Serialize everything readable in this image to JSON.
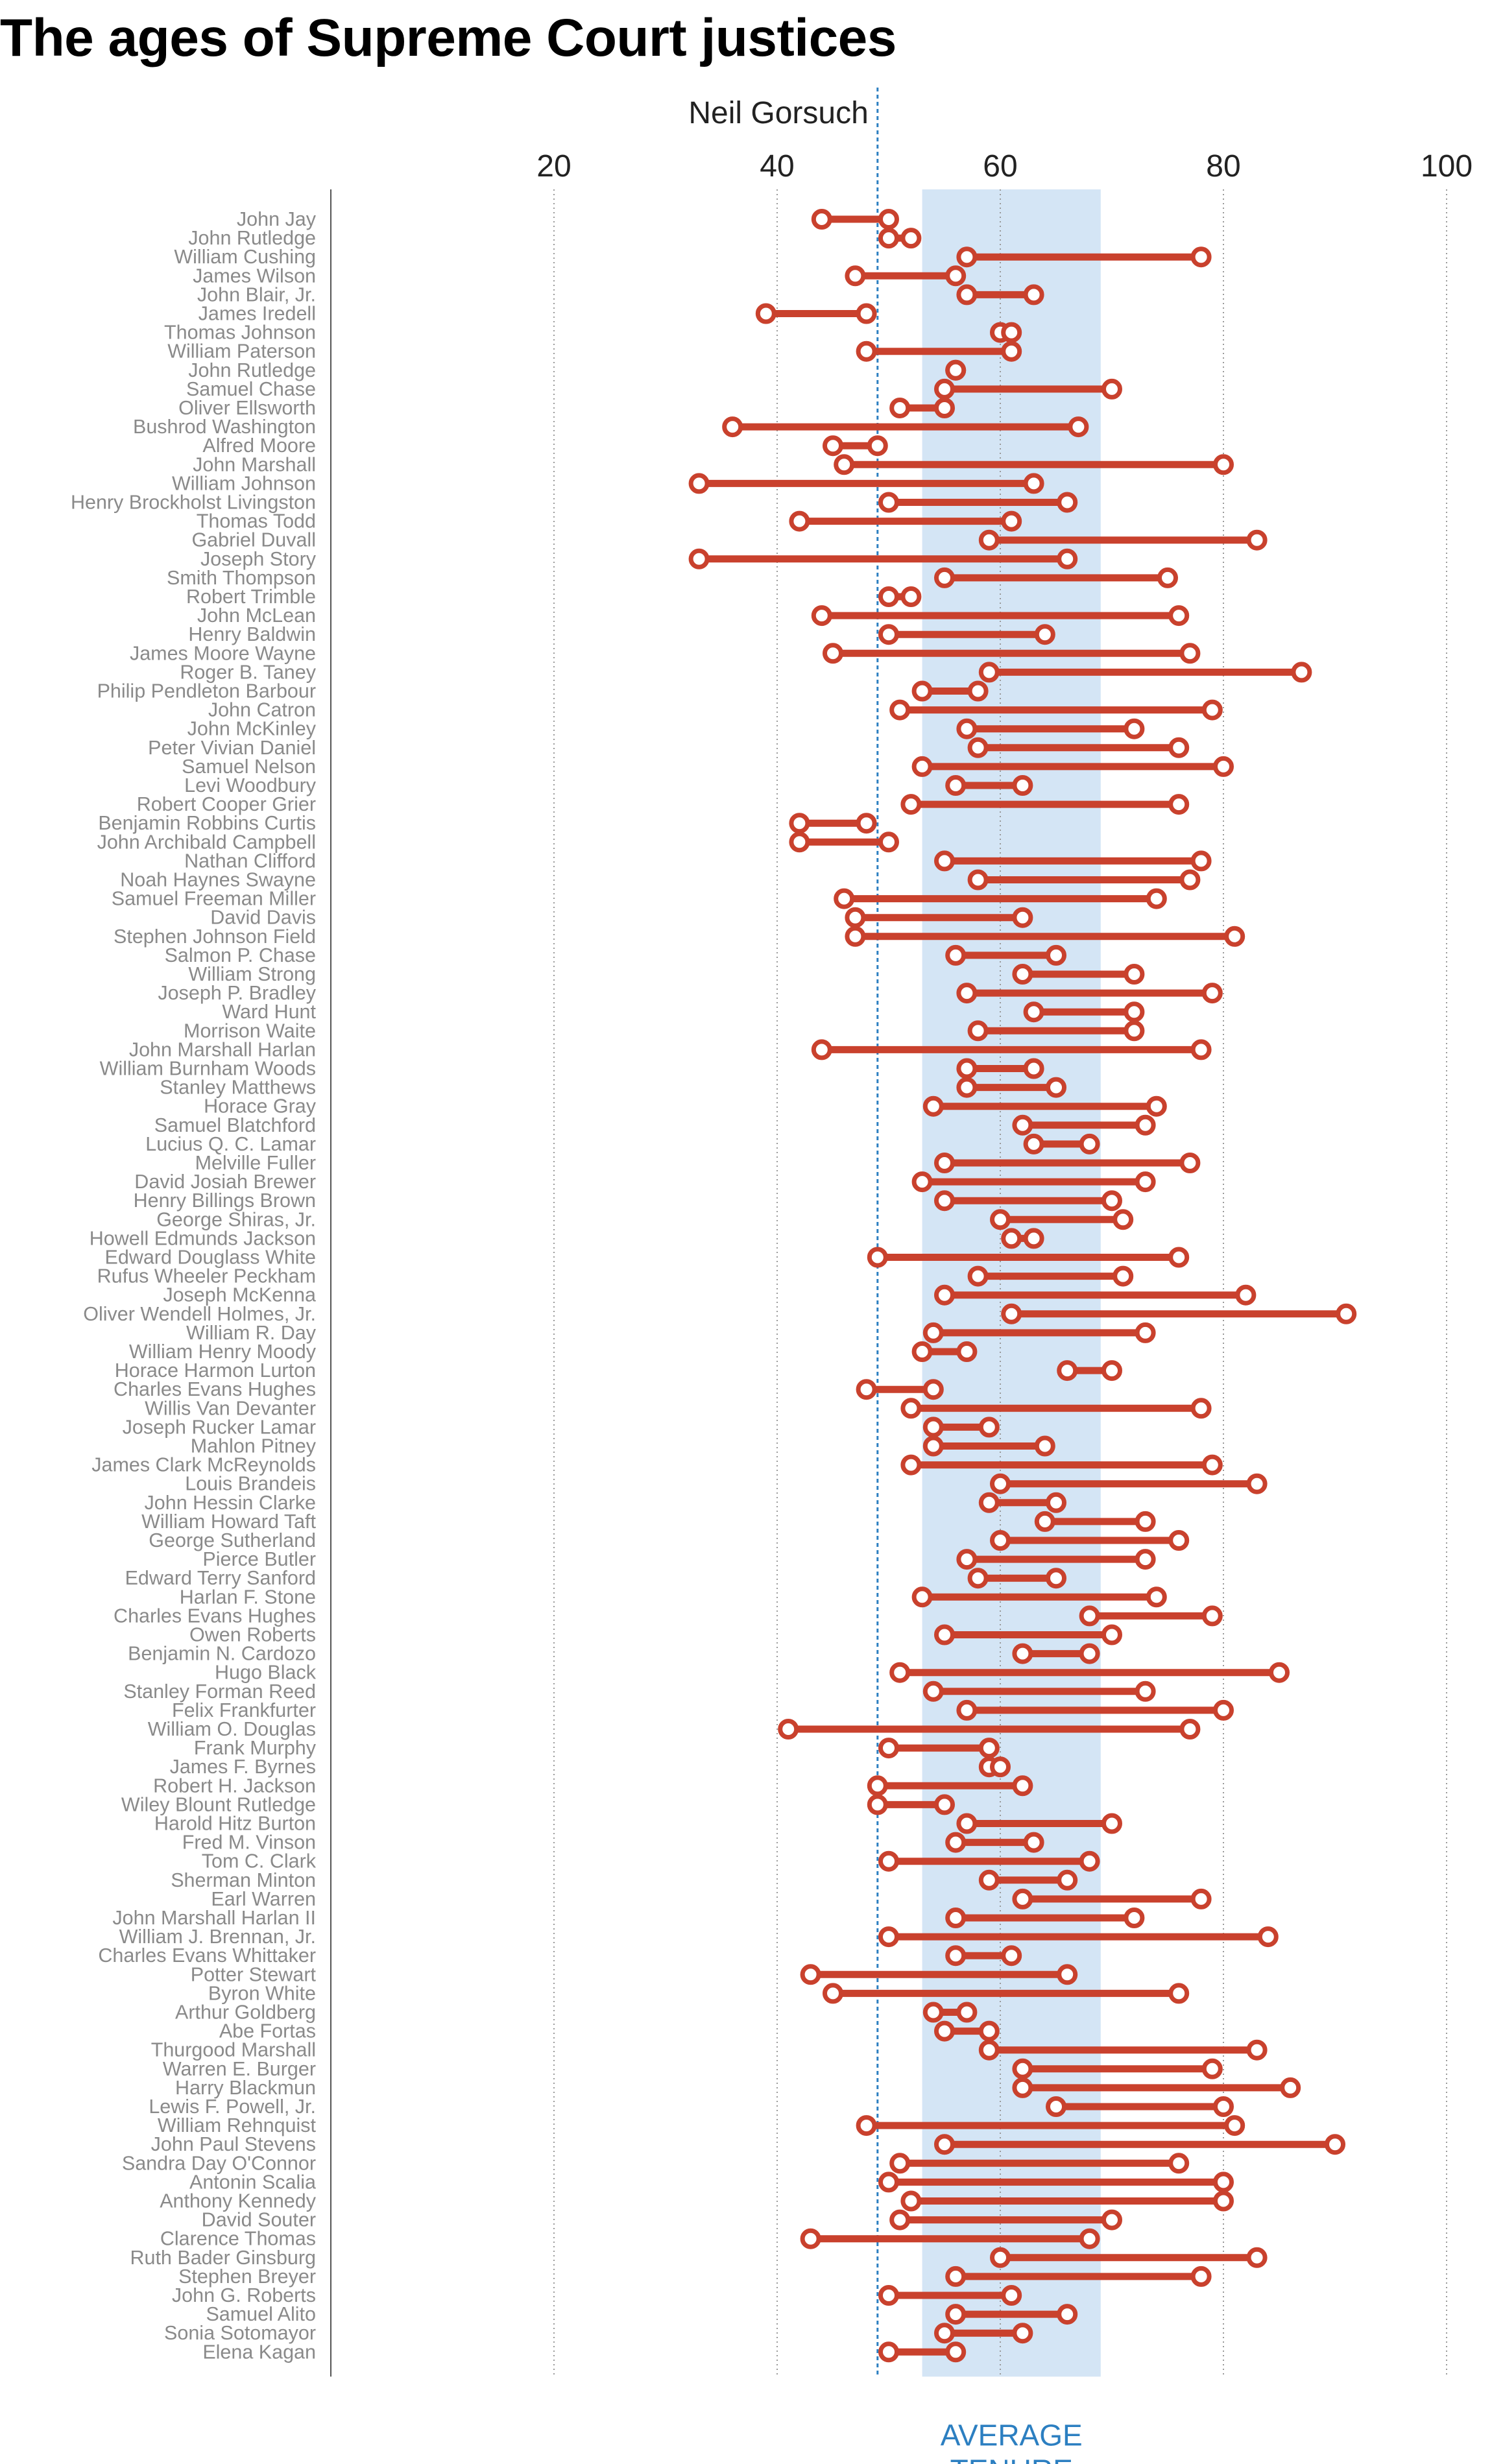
{
  "title": "The ages of Supreme Court justices",
  "colors": {
    "tenure_line": "#c9412d",
    "average_band": "#d4e5f5",
    "marker_line": "#2c7fc1",
    "grid": "#9a9a9a",
    "names": "#8a8a8a"
  },
  "chart_data": {
    "type": "dumbbell",
    "title": "The ages of Supreme Court justices",
    "xlabel": "",
    "ylabel": "",
    "x_ticks": [
      20,
      40,
      60,
      80,
      100
    ],
    "xlim": [
      0,
      100
    ],
    "grid": "vertical dotted",
    "reference_line": {
      "label": "Neil Gorsuch",
      "x": 49
    },
    "average_band": {
      "label": [
        "AVERAGE",
        "TENURE"
      ],
      "x_range": [
        53,
        69
      ]
    },
    "series": [
      {
        "name": "Age at start and end of tenure"
      }
    ],
    "justices": [
      {
        "name": "John Jay",
        "start": 44,
        "end": 50
      },
      {
        "name": "John Rutledge",
        "start": 50,
        "end": 52
      },
      {
        "name": "William Cushing",
        "start": 57,
        "end": 78
      },
      {
        "name": "James Wilson",
        "start": 47,
        "end": 56
      },
      {
        "name": "John Blair, Jr.",
        "start": 57,
        "end": 63
      },
      {
        "name": "James Iredell",
        "start": 39,
        "end": 48
      },
      {
        "name": "Thomas Johnson",
        "start": 60,
        "end": 61
      },
      {
        "name": "William Paterson",
        "start": 48,
        "end": 61
      },
      {
        "name": "John Rutledge",
        "start": 56,
        "end": 56
      },
      {
        "name": "Samuel Chase",
        "start": 55,
        "end": 70
      },
      {
        "name": "Oliver Ellsworth",
        "start": 51,
        "end": 55
      },
      {
        "name": "Bushrod Washington",
        "start": 36,
        "end": 67
      },
      {
        "name": "Alfred Moore",
        "start": 45,
        "end": 49
      },
      {
        "name": "John Marshall",
        "start": 46,
        "end": 80
      },
      {
        "name": "William Johnson",
        "start": 33,
        "end": 63
      },
      {
        "name": "Henry Brockholst Livingston",
        "start": 50,
        "end": 66
      },
      {
        "name": "Thomas Todd",
        "start": 42,
        "end": 61
      },
      {
        "name": "Gabriel Duvall",
        "start": 59,
        "end": 83
      },
      {
        "name": "Joseph Story",
        "start": 33,
        "end": 66
      },
      {
        "name": "Smith Thompson",
        "start": 55,
        "end": 75
      },
      {
        "name": "Robert Trimble",
        "start": 50,
        "end": 52
      },
      {
        "name": "John McLean",
        "start": 44,
        "end": 76
      },
      {
        "name": "Henry Baldwin",
        "start": 50,
        "end": 64
      },
      {
        "name": "James Moore Wayne",
        "start": 45,
        "end": 77
      },
      {
        "name": "Roger B. Taney",
        "start": 59,
        "end": 87
      },
      {
        "name": "Philip Pendleton Barbour",
        "start": 53,
        "end": 58
      },
      {
        "name": "John Catron",
        "start": 51,
        "end": 79
      },
      {
        "name": "John McKinley",
        "start": 57,
        "end": 72
      },
      {
        "name": "Peter Vivian Daniel",
        "start": 58,
        "end": 76
      },
      {
        "name": "Samuel Nelson",
        "start": 53,
        "end": 80
      },
      {
        "name": "Levi Woodbury",
        "start": 56,
        "end": 62
      },
      {
        "name": "Robert Cooper Grier",
        "start": 52,
        "end": 76
      },
      {
        "name": "Benjamin Robbins Curtis",
        "start": 42,
        "end": 48
      },
      {
        "name": "John Archibald Campbell",
        "start": 42,
        "end": 50
      },
      {
        "name": "Nathan Clifford",
        "start": 55,
        "end": 78
      },
      {
        "name": "Noah Haynes Swayne",
        "start": 58,
        "end": 77
      },
      {
        "name": "Samuel Freeman Miller",
        "start": 46,
        "end": 74
      },
      {
        "name": "David Davis",
        "start": 47,
        "end": 62
      },
      {
        "name": "Stephen Johnson Field",
        "start": 47,
        "end": 81
      },
      {
        "name": "Salmon P. Chase",
        "start": 56,
        "end": 65
      },
      {
        "name": "William Strong",
        "start": 62,
        "end": 72
      },
      {
        "name": "Joseph P. Bradley",
        "start": 57,
        "end": 79
      },
      {
        "name": "Ward Hunt",
        "start": 63,
        "end": 72
      },
      {
        "name": "Morrison Waite",
        "start": 58,
        "end": 72
      },
      {
        "name": "John Marshall Harlan",
        "start": 44,
        "end": 78
      },
      {
        "name": "William Burnham Woods",
        "start": 57,
        "end": 63
      },
      {
        "name": "Stanley Matthews",
        "start": 57,
        "end": 65
      },
      {
        "name": "Horace Gray",
        "start": 54,
        "end": 74
      },
      {
        "name": "Samuel Blatchford",
        "start": 62,
        "end": 73
      },
      {
        "name": "Lucius Q. C. Lamar",
        "start": 63,
        "end": 68
      },
      {
        "name": "Melville Fuller",
        "start": 55,
        "end": 77
      },
      {
        "name": "David Josiah Brewer",
        "start": 53,
        "end": 73
      },
      {
        "name": "Henry Billings Brown",
        "start": 55,
        "end": 70
      },
      {
        "name": "George Shiras, Jr.",
        "start": 60,
        "end": 71
      },
      {
        "name": "Howell Edmunds Jackson",
        "start": 61,
        "end": 63
      },
      {
        "name": "Edward Douglass White",
        "start": 49,
        "end": 76
      },
      {
        "name": "Rufus Wheeler Peckham",
        "start": 58,
        "end": 71
      },
      {
        "name": "Joseph McKenna",
        "start": 55,
        "end": 82
      },
      {
        "name": "Oliver Wendell Holmes, Jr.",
        "start": 61,
        "end": 91
      },
      {
        "name": "William R. Day",
        "start": 54,
        "end": 73
      },
      {
        "name": "William Henry Moody",
        "start": 53,
        "end": 57
      },
      {
        "name": "Horace Harmon Lurton",
        "start": 66,
        "end": 70
      },
      {
        "name": "Charles Evans Hughes",
        "start": 48,
        "end": 54
      },
      {
        "name": "Willis Van Devanter",
        "start": 52,
        "end": 78
      },
      {
        "name": "Joseph Rucker Lamar",
        "start": 54,
        "end": 59
      },
      {
        "name": "Mahlon Pitney",
        "start": 54,
        "end": 64
      },
      {
        "name": "James Clark McReynolds",
        "start": 52,
        "end": 79
      },
      {
        "name": "Louis Brandeis",
        "start": 60,
        "end": 83
      },
      {
        "name": "John Hessin Clarke",
        "start": 59,
        "end": 65
      },
      {
        "name": "William Howard Taft",
        "start": 64,
        "end": 73
      },
      {
        "name": "George Sutherland",
        "start": 60,
        "end": 76
      },
      {
        "name": "Pierce Butler",
        "start": 57,
        "end": 73
      },
      {
        "name": "Edward Terry Sanford",
        "start": 58,
        "end": 65
      },
      {
        "name": "Harlan F. Stone",
        "start": 53,
        "end": 74
      },
      {
        "name": "Charles Evans Hughes",
        "start": 68,
        "end": 79
      },
      {
        "name": "Owen Roberts",
        "start": 55,
        "end": 70
      },
      {
        "name": "Benjamin N. Cardozo",
        "start": 62,
        "end": 68
      },
      {
        "name": "Hugo Black",
        "start": 51,
        "end": 85
      },
      {
        "name": "Stanley Forman Reed",
        "start": 54,
        "end": 73
      },
      {
        "name": "Felix Frankfurter",
        "start": 57,
        "end": 80
      },
      {
        "name": "William O. Douglas",
        "start": 41,
        "end": 77
      },
      {
        "name": "Frank Murphy",
        "start": 50,
        "end": 59
      },
      {
        "name": "James F. Byrnes",
        "start": 59,
        "end": 60
      },
      {
        "name": "Robert H. Jackson",
        "start": 49,
        "end": 62
      },
      {
        "name": "Wiley Blount Rutledge",
        "start": 49,
        "end": 55
      },
      {
        "name": "Harold Hitz Burton",
        "start": 57,
        "end": 70
      },
      {
        "name": "Fred M. Vinson",
        "start": 56,
        "end": 63
      },
      {
        "name": "Tom C. Clark",
        "start": 50,
        "end": 68
      },
      {
        "name": "Sherman Minton",
        "start": 59,
        "end": 66
      },
      {
        "name": "Earl Warren",
        "start": 62,
        "end": 78
      },
      {
        "name": "John Marshall Harlan II",
        "start": 56,
        "end": 72
      },
      {
        "name": "William J. Brennan, Jr.",
        "start": 50,
        "end": 84
      },
      {
        "name": "Charles Evans Whittaker",
        "start": 56,
        "end": 61
      },
      {
        "name": "Potter Stewart",
        "start": 43,
        "end": 66
      },
      {
        "name": "Byron White",
        "start": 45,
        "end": 76
      },
      {
        "name": "Arthur Goldberg",
        "start": 54,
        "end": 57
      },
      {
        "name": "Abe Fortas",
        "start": 55,
        "end": 59
      },
      {
        "name": "Thurgood Marshall",
        "start": 59,
        "end": 83
      },
      {
        "name": "Warren E. Burger",
        "start": 62,
        "end": 79
      },
      {
        "name": "Harry Blackmun",
        "start": 62,
        "end": 86
      },
      {
        "name": "Lewis F. Powell, Jr.",
        "start": 65,
        "end": 80
      },
      {
        "name": "William Rehnquist",
        "start": 48,
        "end": 81
      },
      {
        "name": "John Paul Stevens",
        "start": 55,
        "end": 90
      },
      {
        "name": "Sandra Day O'Connor",
        "start": 51,
        "end": 76
      },
      {
        "name": "Antonin Scalia",
        "start": 50,
        "end": 80
      },
      {
        "name": "Anthony Kennedy",
        "start": 52,
        "end": 80
      },
      {
        "name": "David Souter",
        "start": 51,
        "end": 70
      },
      {
        "name": "Clarence Thomas",
        "start": 43,
        "end": 68
      },
      {
        "name": "Ruth Bader Ginsburg",
        "start": 60,
        "end": 83
      },
      {
        "name": "Stephen Breyer",
        "start": 56,
        "end": 78
      },
      {
        "name": "John G. Roberts",
        "start": 50,
        "end": 61
      },
      {
        "name": "Samuel Alito",
        "start": 56,
        "end": 66
      },
      {
        "name": "Sonia Sotomayor",
        "start": 55,
        "end": 62
      },
      {
        "name": "Elena Kagan",
        "start": 50,
        "end": 56
      }
    ]
  }
}
